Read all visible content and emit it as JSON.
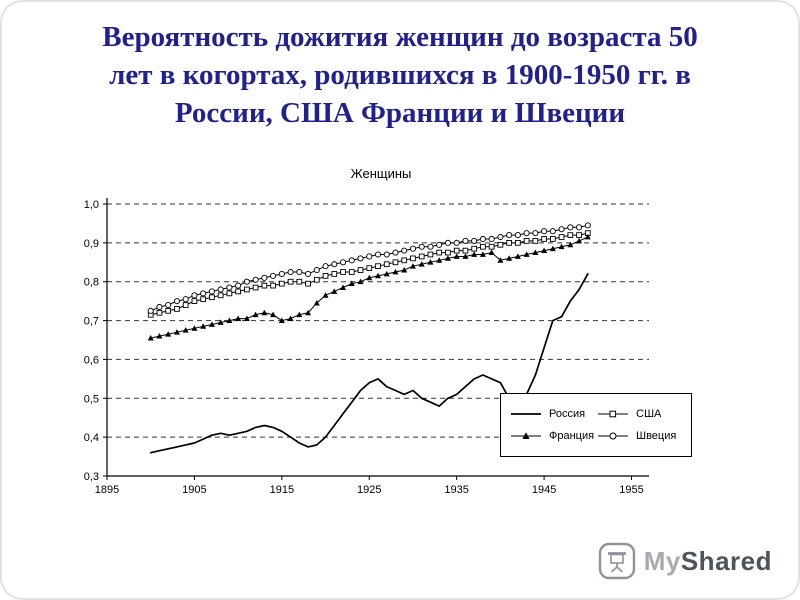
{
  "slide": {
    "title_lines": [
      "Вероятность дожития женщин до возраста 50",
      "лет в когортах, родившихся в 1900-1950 гг. в",
      "России, США Франции и Швеции"
    ],
    "title_color": "#20208E"
  },
  "chart_data": {
    "type": "line",
    "title": "Женщины",
    "xlabel": "",
    "ylabel": "",
    "xlim": [
      1895,
      1957
    ],
    "ylim": [
      0.3,
      1.0
    ],
    "x_ticks": [
      1895,
      1905,
      1915,
      1925,
      1935,
      1945,
      1955
    ],
    "y_ticks": [
      0.3,
      0.4,
      0.5,
      0.6,
      0.7,
      0.8,
      0.9,
      1.0
    ],
    "y_tick_labels": [
      "0,3",
      "0,4",
      "0,5",
      "0,6",
      "0,7",
      "0,8",
      "0,9",
      "1,0"
    ],
    "grid": "horizontal-dashed",
    "legend_position": "inside-bottom-right",
    "x": [
      1900,
      1901,
      1902,
      1903,
      1904,
      1905,
      1906,
      1907,
      1908,
      1909,
      1910,
      1911,
      1912,
      1913,
      1914,
      1915,
      1916,
      1917,
      1918,
      1919,
      1920,
      1921,
      1922,
      1923,
      1924,
      1925,
      1926,
      1927,
      1928,
      1929,
      1930,
      1931,
      1932,
      1933,
      1934,
      1935,
      1936,
      1937,
      1938,
      1939,
      1940,
      1941,
      1942,
      1943,
      1944,
      1945,
      1946,
      1947,
      1948,
      1949,
      1950
    ],
    "series": [
      {
        "name": "Россия",
        "marker": "none",
        "values": [
          0.36,
          0.365,
          0.37,
          0.375,
          0.38,
          0.385,
          0.395,
          0.405,
          0.41,
          0.405,
          0.41,
          0.415,
          0.425,
          0.43,
          0.425,
          0.415,
          0.4,
          0.385,
          0.375,
          0.38,
          0.4,
          0.43,
          0.46,
          0.49,
          0.52,
          0.54,
          0.55,
          0.53,
          0.52,
          0.51,
          0.52,
          0.5,
          0.49,
          0.48,
          0.5,
          0.51,
          0.53,
          0.55,
          0.56,
          0.55,
          0.54,
          0.5,
          0.5,
          0.51,
          0.56,
          0.63,
          0.7,
          0.71,
          0.75,
          0.78,
          0.82
        ]
      },
      {
        "name": "США",
        "marker": "open-square",
        "values": [
          0.715,
          0.72,
          0.725,
          0.73,
          0.74,
          0.75,
          0.755,
          0.76,
          0.765,
          0.77,
          0.775,
          0.78,
          0.785,
          0.79,
          0.79,
          0.795,
          0.8,
          0.8,
          0.795,
          0.805,
          0.815,
          0.82,
          0.825,
          0.825,
          0.83,
          0.835,
          0.84,
          0.845,
          0.85,
          0.855,
          0.86,
          0.865,
          0.87,
          0.875,
          0.875,
          0.88,
          0.88,
          0.885,
          0.89,
          0.89,
          0.895,
          0.9,
          0.9,
          0.905,
          0.905,
          0.91,
          0.91,
          0.915,
          0.92,
          0.92,
          0.925
        ]
      },
      {
        "name": "Франция",
        "marker": "filled-triangle",
        "values": [
          0.655,
          0.66,
          0.665,
          0.67,
          0.675,
          0.68,
          0.685,
          0.69,
          0.695,
          0.7,
          0.705,
          0.705,
          0.715,
          0.72,
          0.715,
          0.7,
          0.705,
          0.715,
          0.72,
          0.745,
          0.765,
          0.775,
          0.785,
          0.795,
          0.8,
          0.81,
          0.815,
          0.82,
          0.825,
          0.83,
          0.84,
          0.845,
          0.85,
          0.855,
          0.86,
          0.865,
          0.865,
          0.87,
          0.87,
          0.875,
          0.855,
          0.86,
          0.865,
          0.87,
          0.875,
          0.88,
          0.885,
          0.89,
          0.895,
          0.905,
          0.915
        ]
      },
      {
        "name": "Швеция",
        "marker": "open-circle",
        "values": [
          0.725,
          0.735,
          0.74,
          0.75,
          0.755,
          0.765,
          0.77,
          0.775,
          0.78,
          0.785,
          0.79,
          0.8,
          0.805,
          0.81,
          0.815,
          0.82,
          0.825,
          0.825,
          0.82,
          0.83,
          0.84,
          0.845,
          0.85,
          0.855,
          0.86,
          0.865,
          0.87,
          0.87,
          0.875,
          0.88,
          0.885,
          0.89,
          0.89,
          0.895,
          0.9,
          0.9,
          0.905,
          0.905,
          0.91,
          0.91,
          0.915,
          0.92,
          0.92,
          0.925,
          0.925,
          0.93,
          0.93,
          0.935,
          0.94,
          0.94,
          0.945
        ]
      }
    ]
  },
  "logo": {
    "text_my": "My",
    "text_shared": "Shared",
    "color_my": "#A7ABB0",
    "color_shared": "#4E545C"
  }
}
